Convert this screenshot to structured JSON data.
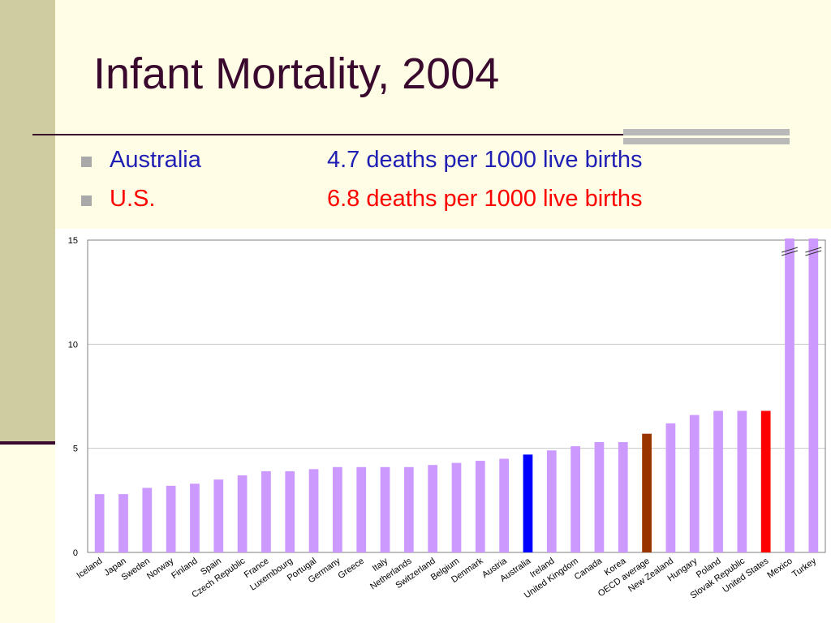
{
  "slide": {
    "title": "Infant Mortality, 2004",
    "bullets": [
      {
        "label": "Australia",
        "value": "4.7 deaths per 1000 live births",
        "color": "#1f1fb4"
      },
      {
        "label": "U.S.",
        "value": "6.8 deaths per 1000 live births",
        "color": "#ff0000"
      }
    ]
  },
  "chart_data": {
    "type": "bar",
    "title": "",
    "xlabel": "",
    "ylabel": "",
    "ylim": [
      0,
      15
    ],
    "yticks": [
      0,
      5,
      10,
      15
    ],
    "grid": true,
    "categories": [
      "Iceland",
      "Japan",
      "Sweden",
      "Norway",
      "Finland",
      "Spain",
      "Czech Republic",
      "France",
      "Luxembourg",
      "Portugal",
      "Germany",
      "Greece",
      "Italy",
      "Netherlands",
      "Switzerland",
      "Belgium",
      "Denmark",
      "Austria",
      "Australia",
      "Ireland",
      "United Kingdom",
      "Canada",
      "Korea",
      "OECD average",
      "New Zealand",
      "Hungary",
      "Poland",
      "Slovak Republic",
      "United States",
      "Mexico",
      "Turkey"
    ],
    "values": [
      2.8,
      2.8,
      3.1,
      3.2,
      3.3,
      3.5,
      3.7,
      3.9,
      3.9,
      4.0,
      4.1,
      4.1,
      4.1,
      4.1,
      4.2,
      4.3,
      4.4,
      4.5,
      4.7,
      4.9,
      5.1,
      5.3,
      5.3,
      5.7,
      6.2,
      6.6,
      6.8,
      6.8,
      6.8,
      15,
      15
    ],
    "truncated": [
      "Mexico",
      "Turkey"
    ],
    "colors": {
      "default": "#cc99ff",
      "Australia": "#0000ff",
      "OECD average": "#993300",
      "United States": "#ff0000"
    }
  }
}
